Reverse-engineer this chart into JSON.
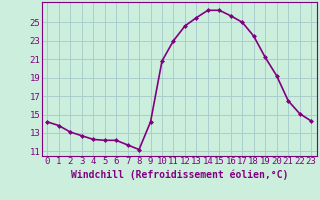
{
  "hours": [
    0,
    1,
    2,
    3,
    4,
    5,
    6,
    7,
    8,
    9,
    10,
    11,
    12,
    13,
    14,
    15,
    16,
    17,
    18,
    19,
    20,
    21,
    22,
    23
  ],
  "values": [
    14.2,
    13.8,
    13.1,
    12.7,
    12.3,
    12.2,
    12.2,
    11.7,
    11.2,
    14.2,
    20.8,
    23.0,
    24.6,
    25.5,
    26.3,
    26.3,
    25.7,
    25.0,
    23.5,
    21.2,
    19.2,
    16.5,
    15.1,
    14.3
  ],
  "line_color": "#800080",
  "marker": "D",
  "marker_size": 2,
  "bg_color": "#cceedd",
  "grid_color": "#aacccc",
  "yticks": [
    11,
    13,
    15,
    17,
    19,
    21,
    23,
    25
  ],
  "ylim": [
    10.5,
    27.2
  ],
  "xlim": [
    -0.5,
    23.5
  ],
  "xlabel": "Windchill (Refroidissement éolien,°C)",
  "xlabel_fontsize": 7,
  "tick_fontsize": 6.5,
  "line_width": 1.2
}
